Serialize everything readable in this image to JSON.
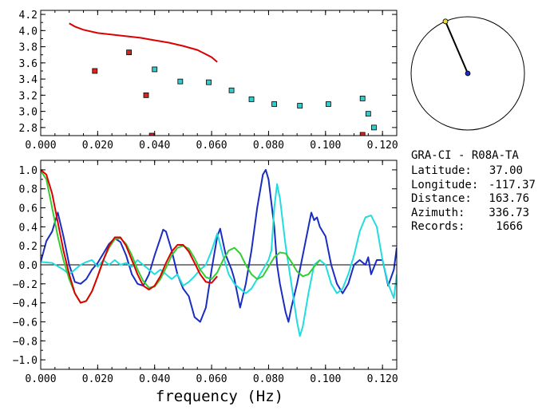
{
  "station": {
    "title": "GRA-CI - R08A-TA",
    "rows": [
      {
        "label": "Latitude:",
        "value": "37.00"
      },
      {
        "label": "Longitude:",
        "value": "-117.37"
      },
      {
        "label": "Distance:",
        "value": "163.76"
      },
      {
        "label": "Azimuth:",
        "value": "336.73"
      },
      {
        "label": "Records:",
        "value": "1666"
      }
    ],
    "azimuth_deg": 336.73
  },
  "chart_data": [
    {
      "type": "scatter",
      "title": "",
      "xlabel": "",
      "ylabel": "",
      "xlim": [
        0.0,
        0.125
      ],
      "ylim": [
        2.7,
        4.25
      ],
      "xticks": [
        "0.000",
        "0.020",
        "0.040",
        "0.060",
        "0.080",
        "0.100",
        "0.120"
      ],
      "yticks": [
        "4.2",
        "4.0",
        "3.8",
        "3.6",
        "3.4",
        "3.2",
        "3.0",
        "2.8"
      ],
      "series": [
        {
          "type": "line",
          "color": "#dd0000",
          "points": [
            [
              0.01,
              4.09
            ],
            [
              0.012,
              4.05
            ],
            [
              0.015,
              4.01
            ],
            [
              0.02,
              3.97
            ],
            [
              0.025,
              3.95
            ],
            [
              0.03,
              3.93
            ],
            [
              0.035,
              3.91
            ],
            [
              0.04,
              3.88
            ],
            [
              0.045,
              3.85
            ],
            [
              0.05,
              3.81
            ],
            [
              0.055,
              3.76
            ],
            [
              0.06,
              3.67
            ],
            [
              0.062,
              3.61
            ]
          ]
        },
        {
          "type": "scatter",
          "color": "#dd2222",
          "points": [
            [
              0.019,
              3.5
            ],
            [
              0.031,
              3.73
            ],
            [
              0.037,
              3.2
            ],
            [
              0.039,
              2.7
            ],
            [
              0.113,
              2.71
            ]
          ]
        },
        {
          "type": "scatter",
          "color": "#33cccc",
          "points": [
            [
              0.04,
              3.52
            ],
            [
              0.049,
              3.37
            ],
            [
              0.059,
              3.36
            ],
            [
              0.067,
              3.26
            ],
            [
              0.074,
              3.15
            ],
            [
              0.082,
              3.09
            ],
            [
              0.091,
              3.07
            ],
            [
              0.101,
              3.09
            ],
            [
              0.113,
              3.16
            ],
            [
              0.115,
              2.97
            ],
            [
              0.117,
              2.8
            ]
          ]
        }
      ]
    },
    {
      "type": "line",
      "title": "",
      "xlabel": "frequency (Hz)",
      "ylabel": "",
      "xlim": [
        0.0,
        0.125
      ],
      "ylim": [
        -1.1,
        1.1
      ],
      "xticks": [
        "0.000",
        "0.020",
        "0.040",
        "0.060",
        "0.080",
        "0.100",
        "0.120"
      ],
      "yticks": [
        "1.0",
        "0.8",
        "0.6",
        "0.4",
        "0.2",
        "0.0",
        "-0.2",
        "-0.4",
        "-0.6",
        "-0.8",
        "-1.0"
      ],
      "series": [
        {
          "color": "#1a2dbf",
          "points": [
            [
              0.0,
              0.03
            ],
            [
              0.002,
              0.25
            ],
            [
              0.004,
              0.35
            ],
            [
              0.006,
              0.55
            ],
            [
              0.008,
              0.3
            ],
            [
              0.01,
              0.0
            ],
            [
              0.012,
              -0.18
            ],
            [
              0.014,
              -0.2
            ],
            [
              0.016,
              -0.15
            ],
            [
              0.018,
              -0.05
            ],
            [
              0.02,
              0.02
            ],
            [
              0.022,
              0.12
            ],
            [
              0.024,
              0.22
            ],
            [
              0.026,
              0.28
            ],
            [
              0.028,
              0.24
            ],
            [
              0.03,
              0.1
            ],
            [
              0.032,
              -0.1
            ],
            [
              0.034,
              -0.2
            ],
            [
              0.036,
              -0.22
            ],
            [
              0.038,
              -0.1
            ],
            [
              0.04,
              0.1
            ],
            [
              0.042,
              0.28
            ],
            [
              0.043,
              0.37
            ],
            [
              0.044,
              0.35
            ],
            [
              0.046,
              0.15
            ],
            [
              0.048,
              -0.1
            ],
            [
              0.05,
              -0.25
            ],
            [
              0.052,
              -0.33
            ],
            [
              0.054,
              -0.55
            ],
            [
              0.056,
              -0.6
            ],
            [
              0.058,
              -0.45
            ],
            [
              0.06,
              -0.05
            ],
            [
              0.062,
              0.3
            ],
            [
              0.063,
              0.38
            ],
            [
              0.065,
              0.1
            ],
            [
              0.067,
              -0.05
            ],
            [
              0.068,
              -0.15
            ],
            [
              0.07,
              -0.45
            ],
            [
              0.072,
              -0.2
            ],
            [
              0.074,
              0.15
            ],
            [
              0.076,
              0.6
            ],
            [
              0.078,
              0.95
            ],
            [
              0.079,
              1.0
            ],
            [
              0.08,
              0.9
            ],
            [
              0.082,
              0.4
            ],
            [
              0.083,
              0.0
            ],
            [
              0.084,
              -0.2
            ],
            [
              0.086,
              -0.5
            ],
            [
              0.087,
              -0.6
            ],
            [
              0.088,
              -0.45
            ],
            [
              0.09,
              -0.2
            ],
            [
              0.092,
              0.1
            ],
            [
              0.094,
              0.4
            ],
            [
              0.095,
              0.55
            ],
            [
              0.096,
              0.47
            ],
            [
              0.097,
              0.5
            ],
            [
              0.098,
              0.4
            ],
            [
              0.1,
              0.3
            ],
            [
              0.102,
              0.0
            ],
            [
              0.104,
              -0.2
            ],
            [
              0.106,
              -0.3
            ],
            [
              0.108,
              -0.2
            ],
            [
              0.11,
              0.0
            ],
            [
              0.112,
              0.05
            ],
            [
              0.114,
              0.0
            ],
            [
              0.115,
              0.08
            ],
            [
              0.116,
              -0.1
            ],
            [
              0.118,
              0.05
            ],
            [
              0.12,
              0.05
            ],
            [
              0.122,
              -0.22
            ],
            [
              0.124,
              -0.05
            ],
            [
              0.125,
              0.18
            ]
          ]
        },
        {
          "color": "#22dddd",
          "points": [
            [
              0.0,
              0.03
            ],
            [
              0.004,
              0.02
            ],
            [
              0.008,
              -0.05
            ],
            [
              0.01,
              -0.1
            ],
            [
              0.012,
              -0.05
            ],
            [
              0.014,
              0.0
            ],
            [
              0.016,
              0.03
            ],
            [
              0.018,
              0.05
            ],
            [
              0.02,
              -0.02
            ],
            [
              0.022,
              0.05
            ],
            [
              0.024,
              0.0
            ],
            [
              0.026,
              0.05
            ],
            [
              0.028,
              0.0
            ],
            [
              0.03,
              0.02
            ],
            [
              0.032,
              -0.02
            ],
            [
              0.034,
              0.05
            ],
            [
              0.036,
              0.0
            ],
            [
              0.038,
              -0.05
            ],
            [
              0.04,
              -0.1
            ],
            [
              0.042,
              -0.05
            ],
            [
              0.044,
              -0.1
            ],
            [
              0.046,
              -0.15
            ],
            [
              0.048,
              -0.1
            ],
            [
              0.05,
              -0.22
            ],
            [
              0.052,
              -0.18
            ],
            [
              0.054,
              -0.12
            ],
            [
              0.056,
              -0.05
            ],
            [
              0.058,
              0.0
            ],
            [
              0.06,
              0.15
            ],
            [
              0.062,
              0.33
            ],
            [
              0.064,
              0.1
            ],
            [
              0.066,
              -0.1
            ],
            [
              0.068,
              -0.2
            ],
            [
              0.07,
              -0.25
            ],
            [
              0.072,
              -0.3
            ],
            [
              0.074,
              -0.25
            ],
            [
              0.076,
              -0.15
            ],
            [
              0.078,
              -0.05
            ],
            [
              0.08,
              0.05
            ],
            [
              0.081,
              0.15
            ],
            [
              0.082,
              0.6
            ],
            [
              0.083,
              0.85
            ],
            [
              0.084,
              0.7
            ],
            [
              0.086,
              0.2
            ],
            [
              0.088,
              -0.2
            ],
            [
              0.09,
              -0.6
            ],
            [
              0.091,
              -0.75
            ],
            [
              0.092,
              -0.65
            ],
            [
              0.094,
              -0.3
            ],
            [
              0.096,
              0.0
            ],
            [
              0.098,
              0.05
            ],
            [
              0.1,
              0.0
            ],
            [
              0.102,
              -0.2
            ],
            [
              0.104,
              -0.3
            ],
            [
              0.106,
              -0.25
            ],
            [
              0.108,
              -0.1
            ],
            [
              0.11,
              0.1
            ],
            [
              0.112,
              0.35
            ],
            [
              0.114,
              0.5
            ],
            [
              0.116,
              0.52
            ],
            [
              0.118,
              0.4
            ],
            [
              0.12,
              0.05
            ],
            [
              0.122,
              -0.2
            ],
            [
              0.124,
              -0.35
            ],
            [
              0.125,
              -0.1
            ]
          ]
        },
        {
          "color": "#33cc33",
          "points": [
            [
              0.0,
              0.99
            ],
            [
              0.002,
              0.9
            ],
            [
              0.004,
              0.6
            ],
            [
              0.006,
              0.3
            ],
            [
              0.008,
              0.05
            ],
            [
              0.01,
              -0.15
            ],
            [
              0.012,
              -0.3
            ],
            [
              0.014,
              -0.4
            ],
            [
              0.016,
              -0.38
            ],
            [
              0.018,
              -0.28
            ],
            [
              0.02,
              -0.12
            ],
            [
              0.022,
              0.05
            ],
            [
              0.024,
              0.18
            ],
            [
              0.026,
              0.27
            ],
            [
              0.028,
              0.28
            ],
            [
              0.03,
              0.22
            ],
            [
              0.032,
              0.1
            ],
            [
              0.034,
              -0.05
            ],
            [
              0.036,
              -0.17
            ],
            [
              0.038,
              -0.24
            ],
            [
              0.04,
              -0.23
            ],
            [
              0.042,
              -0.15
            ],
            [
              0.044,
              -0.03
            ],
            [
              0.046,
              0.1
            ],
            [
              0.048,
              0.18
            ],
            [
              0.05,
              0.2
            ],
            [
              0.052,
              0.17
            ],
            [
              0.054,
              0.07
            ],
            [
              0.056,
              -0.05
            ],
            [
              0.058,
              -0.13
            ],
            [
              0.06,
              -0.15
            ],
            [
              0.062,
              -0.08
            ],
            [
              0.064,
              0.05
            ],
            [
              0.066,
              0.15
            ],
            [
              0.068,
              0.18
            ],
            [
              0.07,
              0.12
            ],
            [
              0.072,
              0.0
            ],
            [
              0.074,
              -0.1
            ],
            [
              0.076,
              -0.15
            ],
            [
              0.078,
              -0.12
            ],
            [
              0.08,
              -0.02
            ],
            [
              0.082,
              0.08
            ],
            [
              0.084,
              0.13
            ],
            [
              0.086,
              0.12
            ],
            [
              0.088,
              0.03
            ],
            [
              0.09,
              -0.07
            ],
            [
              0.092,
              -0.12
            ],
            [
              0.094,
              -0.1
            ],
            [
              0.096,
              -0.02
            ],
            [
              0.098,
              0.05
            ]
          ]
        },
        {
          "color": "#dd0000",
          "points": [
            [
              0.0,
              1.0
            ],
            [
              0.002,
              0.95
            ],
            [
              0.004,
              0.75
            ],
            [
              0.006,
              0.45
            ],
            [
              0.008,
              0.15
            ],
            [
              0.01,
              -0.1
            ],
            [
              0.012,
              -0.3
            ],
            [
              0.014,
              -0.4
            ],
            [
              0.016,
              -0.38
            ],
            [
              0.018,
              -0.28
            ],
            [
              0.02,
              -0.12
            ],
            [
              0.022,
              0.05
            ],
            [
              0.024,
              0.2
            ],
            [
              0.026,
              0.29
            ],
            [
              0.028,
              0.29
            ],
            [
              0.03,
              0.2
            ],
            [
              0.032,
              0.05
            ],
            [
              0.034,
              -0.1
            ],
            [
              0.036,
              -0.22
            ],
            [
              0.038,
              -0.26
            ],
            [
              0.04,
              -0.22
            ],
            [
              0.042,
              -0.12
            ],
            [
              0.044,
              0.02
            ],
            [
              0.046,
              0.14
            ],
            [
              0.048,
              0.21
            ],
            [
              0.05,
              0.21
            ],
            [
              0.052,
              0.14
            ],
            [
              0.054,
              0.02
            ],
            [
              0.056,
              -0.1
            ],
            [
              0.058,
              -0.18
            ],
            [
              0.06,
              -0.19
            ],
            [
              0.062,
              -0.12
            ]
          ]
        }
      ]
    }
  ]
}
